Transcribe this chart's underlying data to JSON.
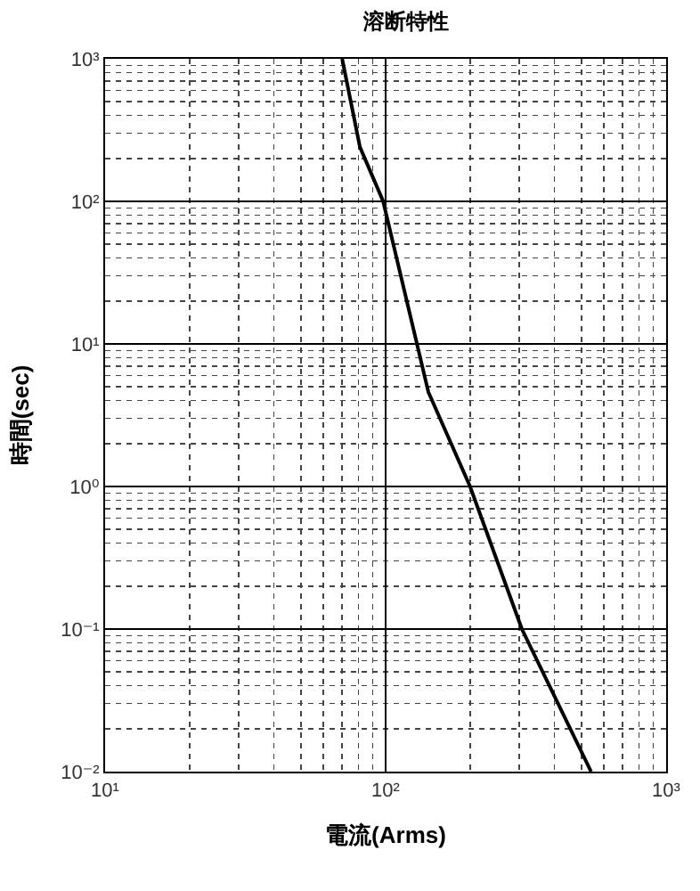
{
  "chart_data": {
    "type": "line",
    "title": "溶断特性",
    "xlabel": "電流(Arms)",
    "ylabel": "時間(sec)",
    "log": "xy",
    "grid": true,
    "marker": "none",
    "line_style": "solid",
    "series": [
      {
        "color": "#000000",
        "x": [
          70,
          81,
          98,
          142,
          200,
          306,
          540
        ],
        "values": [
          1000,
          240,
          100,
          4.6,
          1,
          0.1,
          0.01
        ]
      }
    ],
    "xlim": [
      10,
      1000
    ],
    "xticks": [
      {
        "value": 10,
        "label": "10¹"
      },
      {
        "value": 100,
        "label": "10²"
      },
      {
        "value": 1000,
        "label": "10³"
      }
    ],
    "ylim": [
      0.01,
      1000
    ],
    "yticks": [
      {
        "value": 0.01,
        "label": "10⁻²"
      },
      {
        "value": 0.1,
        "label": "10⁻¹"
      },
      {
        "value": 1,
        "label": "10⁰"
      },
      {
        "value": 10,
        "label": "10¹"
      },
      {
        "value": 100,
        "label": "10²"
      },
      {
        "value": 1000,
        "label": "10³"
      }
    ]
  }
}
